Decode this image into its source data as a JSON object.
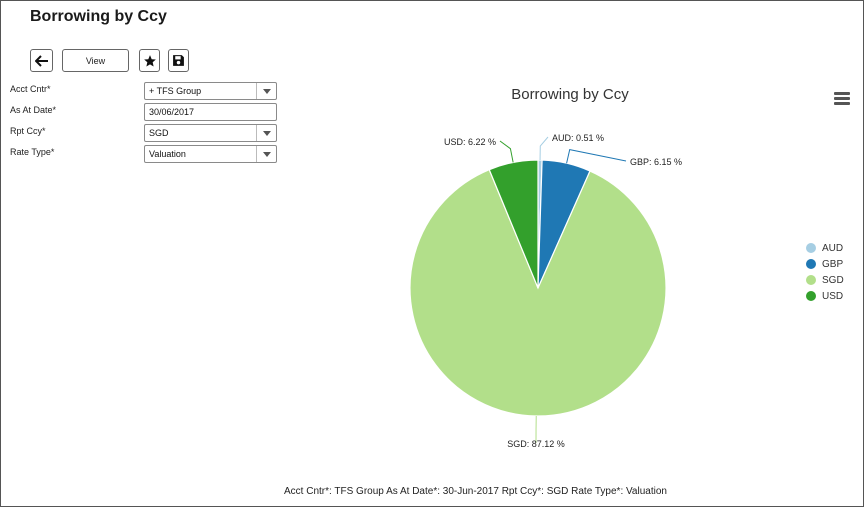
{
  "page": {
    "title": "Borrowing by Ccy"
  },
  "toolbar": {
    "back_icon": "arrow-left-icon",
    "view_label": "View",
    "favorite_icon": "star-icon",
    "save_icon": "floppy-disk-icon"
  },
  "form": {
    "acct_cntr": {
      "label": "Acct Cntr*",
      "value": "+ TFS Group"
    },
    "as_at_date": {
      "label": "As At Date*",
      "value": "30/06/2017"
    },
    "rpt_ccy": {
      "label": "Rpt Ccy*",
      "value": "SGD"
    },
    "rate_type": {
      "label": "Rate Type*",
      "value": "Valuation"
    }
  },
  "chart_data": {
    "type": "pie",
    "title": "Borrowing by Ccy",
    "slices": [
      {
        "name": "AUD",
        "value": 0.51,
        "label": "AUD: 0.51 %",
        "color": "#a6cee3"
      },
      {
        "name": "GBP",
        "value": 6.15,
        "label": "GBP: 6.15 %",
        "color": "#1f78b4"
      },
      {
        "name": "SGD",
        "value": 87.12,
        "label": "SGD: 87.12 %",
        "color": "#b2df8a"
      },
      {
        "name": "USD",
        "value": 6.22,
        "label": "USD: 6.22 %",
        "color": "#33a02c"
      }
    ],
    "legend_position": "right"
  },
  "chart_menu_icon": "hamburger-menu-icon",
  "footer": {
    "summary": "Acct Cntr*: TFS Group As At Date*: 30-Jun-2017 Rpt Ccy*: SGD Rate Type*: Valuation"
  }
}
